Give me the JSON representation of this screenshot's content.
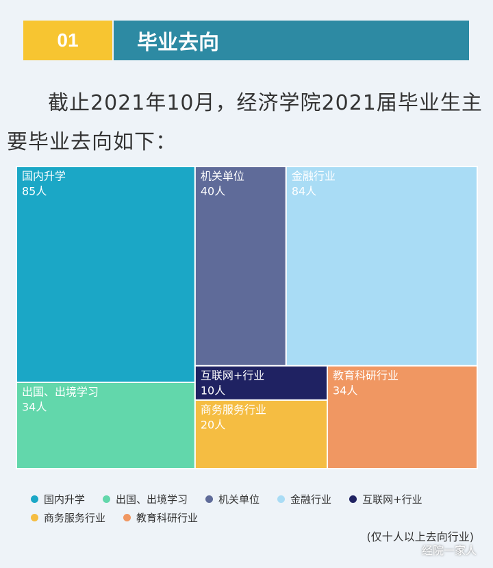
{
  "header": {
    "number": "01",
    "title": "毕业去向"
  },
  "intro": "截止2021年10月，经济学院2021届毕业生主要毕业去向如下：",
  "chart_data": {
    "type": "treemap",
    "categories": [
      "国内升学",
      "出国、出境学习",
      "机关单位",
      "金融行业",
      "互联网+行业",
      "商务服务行业",
      "教育科研行业"
    ],
    "values": [
      85,
      34,
      40,
      84,
      10,
      20,
      34
    ],
    "value_labels": [
      "85人",
      "34人",
      "40人",
      "84人",
      "10人",
      "20人",
      "34人"
    ],
    "colors": [
      "#1ba7c6",
      "#62d7ab",
      "#5f6b99",
      "#a9dcf5",
      "#1f2262",
      "#f5bd42",
      "#f09762"
    ]
  },
  "note": "(仅十人以上去向行业)",
  "watermark": "经院一家人"
}
